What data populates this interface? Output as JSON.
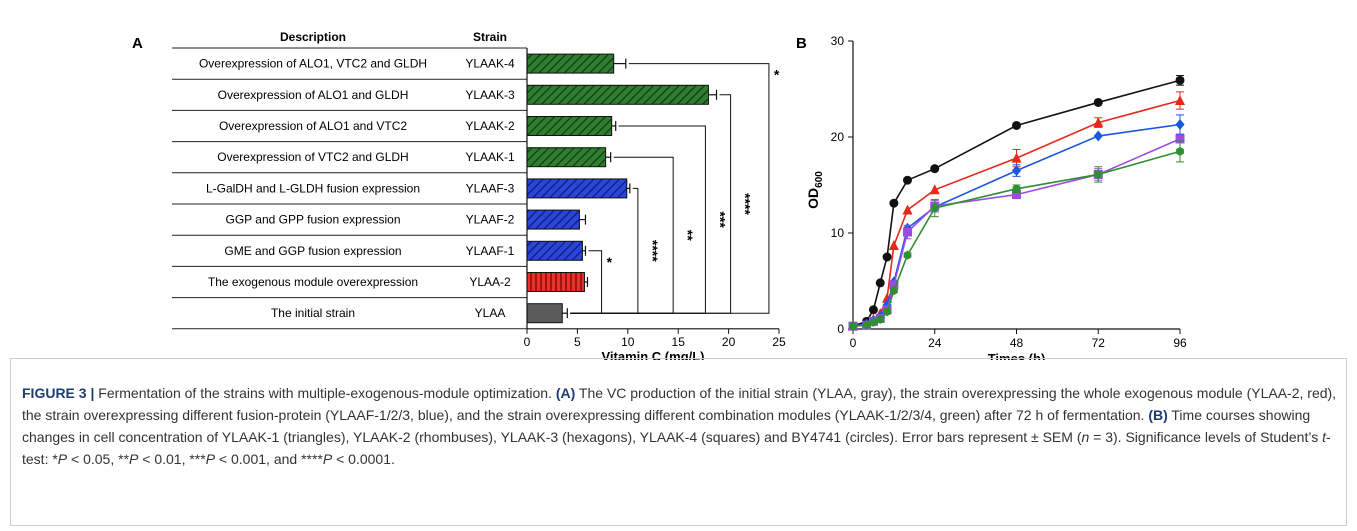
{
  "panelA": {
    "label": "A",
    "header_description": "Description",
    "header_strain": "Strain",
    "rows": [
      {
        "description": "Overexpression of ALO1, VTC2 and GLDH",
        "strain": "YLAAK-4",
        "value": 8.6,
        "err": 1.2,
        "group": "green"
      },
      {
        "description": "Overexpression of ALO1 and GLDH",
        "strain": "YLAAK-3",
        "value": 18.0,
        "err": 0.8,
        "group": "green"
      },
      {
        "description": "Overexpression of ALO1 and VTC2",
        "strain": "YLAAK-2",
        "value": 8.4,
        "err": 0.4,
        "group": "green"
      },
      {
        "description": "Overexpression of VTC2 and GLDH",
        "strain": "YLAAK-1",
        "value": 7.8,
        "err": 0.5,
        "group": "green"
      },
      {
        "description": "L-GalDH and L-GLDH fusion expression",
        "strain": "YLAAF-3",
        "value": 9.9,
        "err": 0.3,
        "group": "blue"
      },
      {
        "description": "GGP and GPP fusion expression",
        "strain": "YLAAF-2",
        "value": 5.2,
        "err": 0.6,
        "group": "blue"
      },
      {
        "description": "GME and GGP fusion expression",
        "strain": "YLAAF-1",
        "value": 5.5,
        "err": 0.3,
        "group": "blue"
      },
      {
        "description": "The exogenous module overexpression",
        "strain": "YLAA-2",
        "value": 5.7,
        "err": 0.3,
        "group": "red"
      },
      {
        "description": "The initial strain",
        "strain": "YLAA",
        "value": 3.5,
        "err": 0.5,
        "group": "gray"
      }
    ],
    "significance": [
      {
        "from": 8,
        "to": 0,
        "label": "*",
        "x": 24
      },
      {
        "from": 8,
        "to": 1,
        "label": "****",
        "x": 20.2
      },
      {
        "from": 8,
        "to": 2,
        "label": "***",
        "x": 17.7
      },
      {
        "from": 8,
        "to": 3,
        "label": "**",
        "x": 14.5
      },
      {
        "from": 8,
        "to": 4,
        "label": "****",
        "x": 11.0
      },
      {
        "from": 8,
        "to": 6,
        "label": "*",
        "x": 7.4
      }
    ],
    "xticks": [
      0,
      5,
      10,
      15,
      20,
      25
    ],
    "xlim": [
      0,
      25
    ],
    "xlabel": "Vitamin C (mg/L)"
  },
  "panelB": {
    "label": "B",
    "ylabel_main": "OD",
    "ylabel_sub": "600",
    "xlabel": "Times (h)",
    "xticks": [
      0,
      24,
      48,
      72,
      96
    ],
    "yticks": [
      0,
      10,
      20,
      30
    ],
    "xlim": [
      0,
      96
    ],
    "ylim": [
      0,
      30
    ],
    "series": [
      {
        "marker": "circle",
        "color": "#111111",
        "x": [
          0,
          4,
          6,
          8,
          10,
          12,
          16,
          24,
          48,
          72,
          96
        ],
        "y": [
          0.3,
          0.8,
          2.0,
          4.8,
          7.5,
          13.1,
          15.5,
          16.7,
          21.2,
          23.6,
          25.9
        ],
        "err": [
          0,
          0,
          0,
          0,
          0,
          0,
          0,
          0,
          0,
          0,
          0.5
        ]
      },
      {
        "marker": "triangle",
        "color": "#e5291d",
        "x": [
          0,
          4,
          6,
          8,
          10,
          12,
          16,
          24,
          48,
          72,
          96
        ],
        "y": [
          0.3,
          0.5,
          1.0,
          1.6,
          3.2,
          8.7,
          12.4,
          14.5,
          17.8,
          21.5,
          23.8
        ],
        "err": [
          0,
          0,
          0,
          0,
          0,
          0,
          0,
          0,
          0.9,
          0.5,
          0.9
        ]
      },
      {
        "marker": "diamond",
        "color": "#1a57e0",
        "x": [
          0,
          4,
          6,
          8,
          10,
          12,
          16,
          24,
          48,
          72,
          96
        ],
        "y": [
          0.3,
          0.5,
          0.9,
          1.3,
          2.5,
          4.9,
          10.5,
          12.7,
          16.5,
          20.1,
          21.3
        ],
        "err": [
          0,
          0,
          0,
          0,
          0,
          0,
          0,
          0.5,
          0.6,
          0,
          1.0
        ]
      },
      {
        "marker": "square",
        "color": "#9a4de0",
        "x": [
          0,
          4,
          6,
          8,
          10,
          12,
          16,
          24,
          48,
          72,
          96
        ],
        "y": [
          0.3,
          0.4,
          0.8,
          1.1,
          2.0,
          4.6,
          10.1,
          12.8,
          14.0,
          16.1,
          19.8
        ],
        "err": [
          0,
          0,
          0,
          0,
          0,
          0,
          0.7,
          0.6,
          0.3,
          0.6,
          0.4
        ]
      },
      {
        "marker": "hexagon",
        "color": "#2f8f32",
        "x": [
          0,
          4,
          6,
          8,
          10,
          12,
          16,
          24,
          48,
          72,
          96
        ],
        "y": [
          0.3,
          0.4,
          0.7,
          1.0,
          1.8,
          4.0,
          7.7,
          12.6,
          14.6,
          16.1,
          18.5
        ],
        "err": [
          0,
          0,
          0,
          0,
          0,
          0,
          0,
          0.9,
          0.4,
          0.8,
          1.1
        ]
      }
    ]
  },
  "caption": {
    "figure_label": "FIGURE 3 |",
    "text": " Fermentation of the strains with multiple-exogenous-module optimization. ",
    "a_label": "(A)",
    "a_text": " The VC production of the initial strain (YLAA, gray), the strain overexpressing the whole exogenous module (YLAA-2, red), the strain overexpressing different fusion-protein (YLAAF-1/2/3, blue), and the strain overexpressing different combination modules (YLAAK-1/2/3/4, green) after 72 h of fermentation. ",
    "b_label": "(B)",
    "b_text": " Time courses showing changes in cell concentration of YLAAK-1 (triangles), YLAAK-2 (rhombuses), YLAAK-3 (hexagons), YLAAK-4 (squares) and BY4741 (circles). Error bars represent ± SEM (",
    "n_var": "n",
    "n_text": " = 3). Significance levels of Student’s ",
    "t_var": "t",
    "t_text": "-test: *",
    "p1": "P",
    "p1_text": " < 0.05, **",
    "p2": "P",
    "p2_text": " < 0.01, ***",
    "p3": "P",
    "p3_text": " < 0.001, and ****",
    "p4": "P",
    "p4_text": " < 0.0001."
  }
}
